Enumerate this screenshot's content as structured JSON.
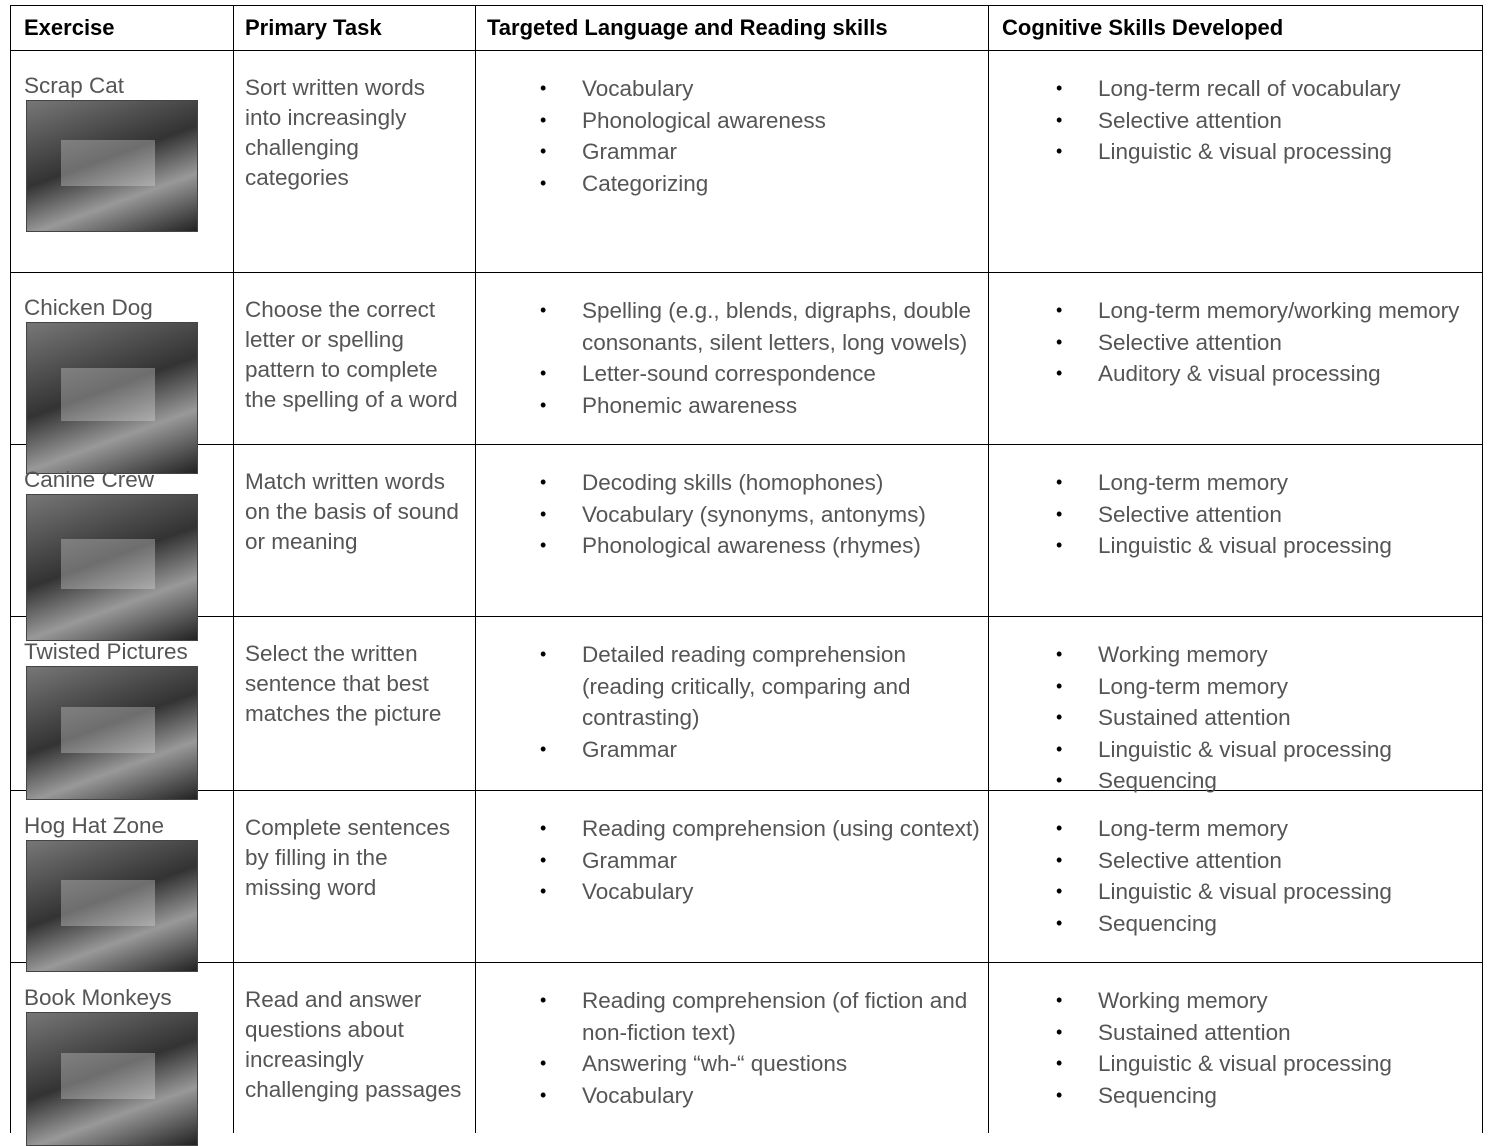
{
  "table": {
    "header": [
      "Exercise",
      "Primary Task",
      "Targeted Language and Reading skills",
      "Cognitive Skills Developed"
    ],
    "rows": [
      {
        "exercise": "Scrap Cat",
        "task": "Sort written words into increasingly challenging categories",
        "language": [
          "Vocabulary",
          "Phonological awareness",
          "Grammar",
          "Categorizing"
        ],
        "cognitive": [
          "Long-term recall of vocabulary",
          "Selective attention",
          "Linguistic & visual processing"
        ]
      },
      {
        "exercise": "Chicken Dog",
        "task": "Choose the correct letter or spelling pattern to complete the spelling of a word",
        "language": [
          "Spelling (e.g., blends, digraphs, double consonants, silent letters, long vowels)",
          "Letter-sound correspondence",
          "Phonemic awareness"
        ],
        "cognitive": [
          "Long-term memory/working memory",
          "Selective attention",
          "Auditory & visual processing"
        ]
      },
      {
        "exercise": "Canine Crew",
        "task": "Match written words on the basis of sound or meaning",
        "language": [
          "Decoding skills (homophones)",
          "Vocabulary (synonyms, antonyms)",
          "Phonological awareness (rhymes)"
        ],
        "cognitive": [
          "Long-term memory",
          "Selective attention",
          "Linguistic & visual processing"
        ]
      },
      {
        "exercise": "Twisted Pictures",
        "task": "Select the written sentence that best matches the picture",
        "language": [
          "Detailed reading comprehension (reading critically, comparing and contrasting)",
          "Grammar"
        ],
        "cognitive": [
          "Working memory",
          "Long-term memory",
          "Sustained attention",
          "Linguistic & visual processing",
          "Sequencing"
        ]
      },
      {
        "exercise": "Hog Hat Zone",
        "task": "Complete sentences by filling in the missing word",
        "language": [
          "Reading comprehension (using context)",
          "Grammar",
          "Vocabulary"
        ],
        "cognitive": [
          "Long-term memory",
          "Selective attention",
          "Linguistic & visual processing",
          "Sequencing"
        ]
      },
      {
        "exercise": "Book Monkeys",
        "task": "Read and answer questions about increasingly challenging passages",
        "language": [
          "Reading comprehension (of fiction and non-fiction text)",
          "Answering “wh-“ questions",
          "Vocabulary"
        ],
        "cognitive": [
          "Working memory",
          "Sustained attention",
          "Linguistic & visual processing",
          "Sequencing"
        ]
      }
    ]
  }
}
